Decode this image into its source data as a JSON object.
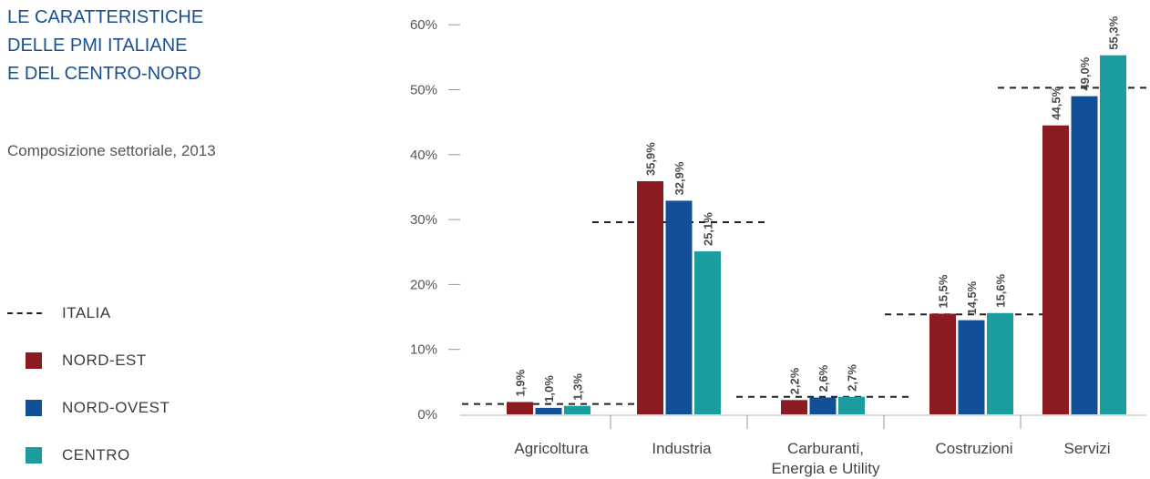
{
  "header": {
    "title_lines": [
      "LE CARATTERISTICHE",
      "DELLE PMI ITALIANE",
      "E DEL CENTRO-NORD"
    ],
    "subtitle": "Composizione settoriale, 2013"
  },
  "legend": {
    "italia": "ITALIA",
    "nord_est": "NORD-EST",
    "nord_ovest": "NORD-OVEST",
    "centro": "CENTRO"
  },
  "colors": {
    "nord_est": "#8b1a21",
    "nord_ovest": "#114f96",
    "centro": "#1b9c9e",
    "title": "#1a4f93",
    "italia_line": "#222222"
  },
  "chart_data": {
    "type": "bar",
    "categories": [
      "Agricoltura",
      "Industria",
      "Carburanti,\nEnergia e Utility",
      "Costruzioni",
      "Servizi"
    ],
    "series": [
      {
        "name": "NORD-EST",
        "values": [
          1.9,
          35.9,
          2.2,
          15.5,
          44.5
        ],
        "labels": [
          "1,9%",
          "35,9%",
          "2,2%",
          "15,5%",
          "44,5%"
        ]
      },
      {
        "name": "NORD-OVEST",
        "values": [
          1.0,
          32.9,
          2.6,
          14.5,
          49.0
        ],
        "labels": [
          "1,0%",
          "32,9%",
          "2,6%",
          "14,5%",
          "49,0%"
        ]
      },
      {
        "name": "CENTRO",
        "values": [
          1.3,
          25.1,
          2.7,
          15.6,
          55.3
        ],
        "labels": [
          "1,3%",
          "25,1%",
          "2,7%",
          "15,6%",
          "55,3%"
        ]
      }
    ],
    "reference": {
      "name": "ITALIA",
      "values": [
        1.6,
        29.6,
        2.7,
        15.4,
        50.3
      ]
    },
    "yticks": [
      "0%",
      "10%",
      "20%",
      "30%",
      "40%",
      "50%",
      "60%"
    ],
    "ylim": [
      0,
      60
    ],
    "grid": false,
    "legend_position": "left"
  }
}
